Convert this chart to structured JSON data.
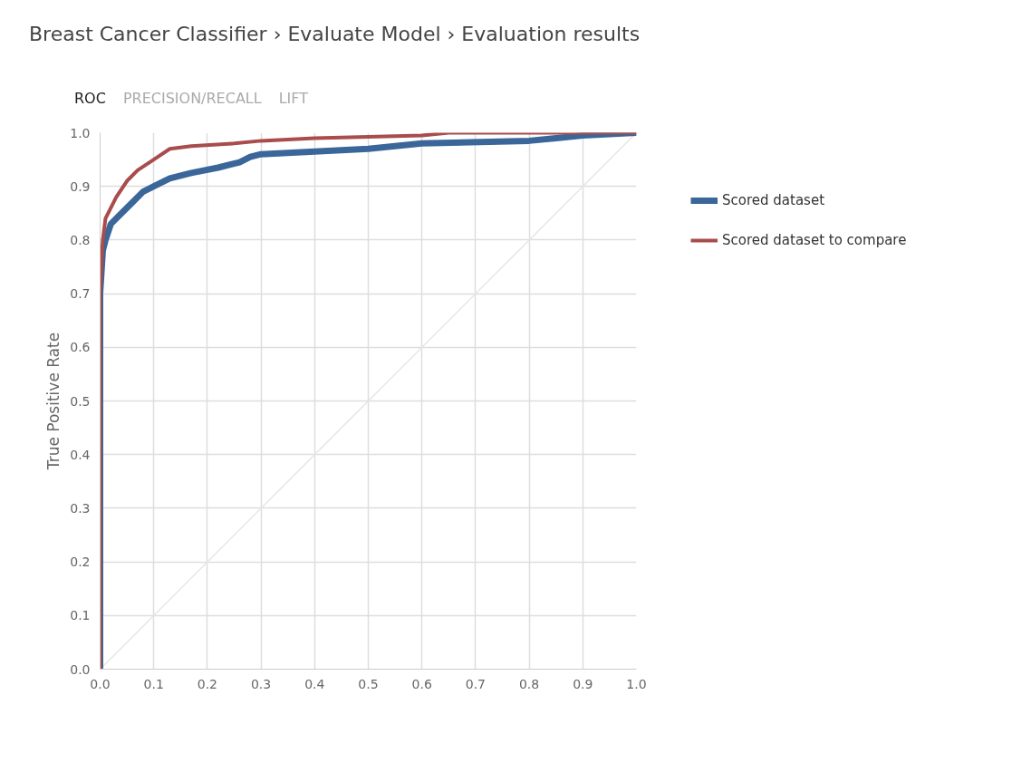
{
  "chart_data": {
    "type": "line",
    "title": "Breast Cancer Classifier › Evaluate Model › Evaluation results",
    "annotations": [
      "ROC",
      "PRECISION/RECALL",
      "LIFT"
    ],
    "ylabel": "True Positive Rate",
    "xlim": [
      0,
      1
    ],
    "ylim": [
      0,
      1
    ],
    "xticks": [
      {
        "value": 0,
        "label": "0.0"
      },
      0.1,
      0.2,
      0.3,
      0.4,
      0.5,
      0.6,
      0.7,
      0.8,
      0.9,
      {
        "value": 1,
        "label": "1.0"
      }
    ],
    "yticks": [
      {
        "value": 0,
        "label": "0.0"
      },
      0.1,
      0.2,
      0.3,
      0.4,
      0.5,
      0.6,
      0.7,
      0.8,
      0.9,
      {
        "value": 1,
        "label": "1.0"
      }
    ],
    "grid": true,
    "legend": "right",
    "marker": "none",
    "line_style": "solid",
    "series": [
      {
        "color": "#e6e6e6",
        "x": [
          0,
          1
        ],
        "values": [
          0,
          1
        ]
      },
      {
        "name": "Scored dataset",
        "color": "#3a6699",
        "x": [
          0,
          0,
          0.005,
          0.01,
          0.02,
          0.04,
          0.06,
          0.08,
          0.1,
          0.13,
          0.17,
          0.22,
          0.26,
          0.28,
          0.3,
          0.4,
          0.5,
          0.55,
          0.6,
          0.8,
          0.85,
          0.9,
          1
        ],
        "values": [
          0,
          0.7,
          0.78,
          0.8,
          0.83,
          0.85,
          0.87,
          0.89,
          0.9,
          0.915,
          0.925,
          0.935,
          0.945,
          0.955,
          0.96,
          0.965,
          0.97,
          0.975,
          0.98,
          0.985,
          0.99,
          0.995,
          1
        ]
      },
      {
        "name": "Scored dataset to compare",
        "color": "#a84c4c",
        "x": [
          0,
          0,
          0.005,
          0.01,
          0.02,
          0.03,
          0.05,
          0.07,
          0.1,
          0.13,
          0.17,
          0.25,
          0.3,
          0.4,
          0.6,
          0.65,
          1
        ],
        "values": [
          0,
          0.7,
          0.8,
          0.84,
          0.86,
          0.88,
          0.91,
          0.93,
          0.95,
          0.97,
          0.975,
          0.98,
          0.985,
          0.99,
          0.995,
          1,
          1
        ]
      }
    ]
  }
}
